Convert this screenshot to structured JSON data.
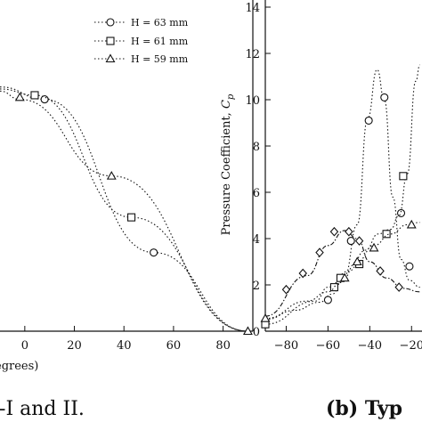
{
  "chart_data": [
    {
      "type": "line",
      "title": "",
      "xlabel": "egrees)",
      "ylabel": "",
      "xlim": [
        -10,
        92
      ],
      "ylim": [
        0,
        1.6
      ],
      "x_ticks": [
        0,
        20,
        40,
        60,
        80
      ],
      "legend": {
        "placement": "top-right",
        "entries": [
          {
            "label": "H = 63 mm",
            "marker": "circle"
          },
          {
            "label": "H = 61 mm",
            "marker": "square"
          },
          {
            "label": "H = 59 mm",
            "marker": "triangle"
          }
        ]
      },
      "series": [
        {
          "marker": "circle",
          "points": [
            [
              -10,
              1.18
            ],
            [
              8,
              1.12
            ],
            [
              52,
              0.38
            ],
            [
              90,
              0.0
            ]
          ],
          "markers": [
            [
              8,
              1.12
            ],
            [
              52,
              0.38
            ]
          ]
        },
        {
          "marker": "square",
          "points": [
            [
              -10,
              1.17
            ],
            [
              4,
              1.14
            ],
            [
              43,
              0.55
            ],
            [
              90,
              0.0
            ]
          ],
          "markers": [
            [
              4,
              1.14
            ],
            [
              43,
              0.55
            ]
          ]
        },
        {
          "marker": "triangle",
          "points": [
            [
              -10,
              1.16
            ],
            [
              -2,
              1.12
            ],
            [
              35,
              0.75
            ],
            [
              90,
              0.0
            ]
          ],
          "markers": [
            [
              -2,
              1.13
            ],
            [
              35,
              0.75
            ],
            [
              90,
              0.0
            ]
          ]
        }
      ],
      "caption": "e-I and II."
    },
    {
      "type": "line",
      "title": "",
      "xlabel": "",
      "ylabel": "Pressure Coefficient, C_p",
      "xlim": [
        -90,
        -15
      ],
      "ylim": [
        0,
        14
      ],
      "x_ticks": [
        -80,
        -60,
        -40,
        -20
      ],
      "y_ticks": [
        0,
        2,
        4,
        6,
        8,
        10,
        12,
        14
      ],
      "series": [
        {
          "marker": "circle",
          "points": [
            [
              -90,
              0.5
            ],
            [
              -76,
              0.9
            ],
            [
              -64,
              1.25
            ],
            [
              -58,
              1.6
            ],
            [
              -52,
              2.4
            ],
            [
              -46,
              4.6
            ],
            [
              -41,
              9.2
            ],
            [
              -36.5,
              11.3
            ],
            [
              -33,
              10.0
            ],
            [
              -29,
              5.8
            ],
            [
              -25,
              3.1
            ],
            [
              -21,
              2.2
            ],
            [
              -16,
              1.9
            ]
          ],
          "markers": [
            [
              -60,
              1.35
            ],
            [
              -49,
              3.9
            ],
            [
              -40.5,
              9.1
            ],
            [
              -33,
              10.1
            ],
            [
              -25,
              5.1
            ],
            [
              -21,
              2.8
            ]
          ]
        },
        {
          "marker": "square",
          "points": [
            [
              -90,
              0.3
            ],
            [
              -66,
              1.3
            ],
            [
              -60,
              1.9
            ],
            [
              -50,
              2.6
            ],
            [
              -42,
              3.5
            ],
            [
              -36,
              4.2
            ],
            [
              -30,
              4.4
            ],
            [
              -26,
              5.0
            ],
            [
              -22,
              6.8
            ],
            [
              -18,
              10.8
            ],
            [
              -16,
              11.5
            ]
          ],
          "markers": [
            [
              -90,
              0.3
            ],
            [
              -57,
              1.9
            ],
            [
              -54,
              2.3
            ],
            [
              -45,
              2.9
            ],
            [
              -32,
              4.2
            ],
            [
              -24,
              6.7
            ]
          ]
        },
        {
          "marker": "diamond",
          "points": [
            [
              -90,
              0.65
            ],
            [
              -70,
              2.4
            ],
            [
              -60,
              3.7
            ],
            [
              -52,
              4.35
            ],
            [
              -46,
              4.0
            ],
            [
              -40,
              3.0
            ],
            [
              -32,
              2.3
            ],
            [
              -24,
              1.85
            ],
            [
              -16,
              1.7
            ]
          ],
          "markers": [
            [
              -80,
              1.8
            ],
            [
              -72,
              2.5
            ],
            [
              -64,
              3.4
            ],
            [
              -57,
              4.3
            ],
            [
              -50,
              4.3
            ],
            [
              -45,
              3.9
            ],
            [
              -35,
              2.6
            ],
            [
              -26,
              1.9
            ]
          ]
        },
        {
          "marker": "triangle",
          "points": [
            [
              -90,
              0.55
            ],
            [
              -70,
              1.3
            ],
            [
              -60,
              1.7
            ],
            [
              -54,
              2.1
            ],
            [
              -46,
              3.0
            ],
            [
              -38,
              3.7
            ],
            [
              -30,
              4.2
            ],
            [
              -22,
              4.6
            ],
            [
              -16,
              4.7
            ]
          ],
          "markers": [
            [
              -90,
              0.55
            ],
            [
              -52,
              2.3
            ],
            [
              -46,
              3.0
            ],
            [
              -38,
              3.6
            ],
            [
              -20,
              4.6
            ]
          ]
        }
      ],
      "caption": "(b) Typ"
    }
  ]
}
